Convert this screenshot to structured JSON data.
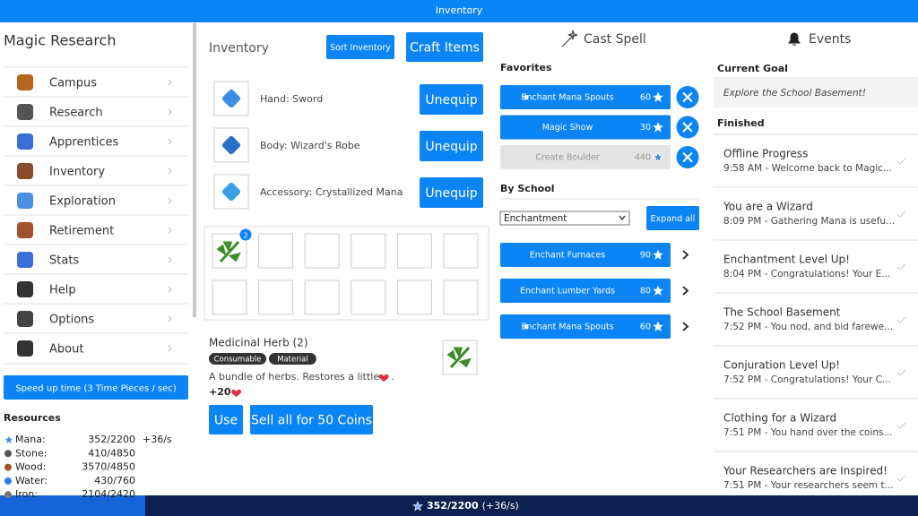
{
  "top_bar": {
    "title": "Inventory"
  },
  "sidebar": {
    "title": "Magic Research",
    "nav": [
      "Campus",
      "Research",
      "Apprentices",
      "Inventory",
      "Exploration",
      "Retirement",
      "Stats",
      "Help",
      "Options",
      "About"
    ],
    "speed_button": "Speed up time (3 Time Pieces / sec)",
    "resources": {
      "title": "Resources",
      "rows": [
        {
          "name": "Mana:",
          "amount": "352/2200",
          "rate": "+36/s"
        },
        {
          "name": "Stone:",
          "amount": "410/4850"
        },
        {
          "name": "Wood:",
          "amount": "3570/4850"
        },
        {
          "name": "Water:",
          "amount": "430/760"
        },
        {
          "name": "Iron:",
          "amount": "2104/2420"
        }
      ]
    }
  },
  "inventory": {
    "title": "Inventory",
    "sort_button": "Sort Inventory",
    "craft_button": "Craft Items",
    "equipment": [
      {
        "label": "Hand: Sword",
        "button": "Unequip"
      },
      {
        "label": "Body: Wizard's Robe",
        "button": "Unequip"
      },
      {
        "label": "Accessory: Crystallized Mana",
        "button": "Unequip"
      }
    ],
    "slot_badge": "2",
    "item": {
      "name": "Medicinal Herb (2)",
      "tags": [
        "Consumable",
        "Material"
      ],
      "description": [
        "A bundle of herbs. Restores a little",
        "."
      ],
      "effect": "+20",
      "use_button": "Use",
      "sell_button": "Sell all for 50 Coins"
    }
  },
  "cast_spell": {
    "title": "Cast Spell",
    "favorites_title": "Favorites",
    "favorites": [
      {
        "name": "Enchant Mana Spouts",
        "cost": "60"
      },
      {
        "name": "Magic Show",
        "cost": "30"
      },
      {
        "name": "Create Boulder",
        "cost": "440"
      }
    ],
    "by_school_title": "By School",
    "school_select": "Enchantment",
    "expand_button": "Expand all",
    "school_spells": [
      {
        "name": "Enchant Furnaces",
        "cost": "90"
      },
      {
        "name": "Enchant Lumber Yards",
        "cost": "80"
      },
      {
        "name": "Enchant Mana Spouts",
        "cost": "60"
      }
    ]
  },
  "events": {
    "title": "Events",
    "current_goal_title": "Current Goal",
    "current_goal": "Explore the School Basement!",
    "finished_title": "Finished",
    "list": [
      {
        "title": "Offline Progress",
        "text": "9:58 AM - Welcome back to Magic..."
      },
      {
        "title": "You are a Wizard",
        "text": "8:09 PM - Gathering Mana is usefu..."
      },
      {
        "title": "Enchantment Level Up!",
        "text": "8:04 PM - Congratulations! Your E..."
      },
      {
        "title": "The School Basement",
        "text": "7:52 PM - You nod, and bid farewe..."
      },
      {
        "title": "Conjuration Level Up!",
        "text": "7:52 PM - Congratulations! Your C..."
      },
      {
        "title": "Clothing for a Wizard",
        "text": "7:51 PM - You hand over the coins..."
      },
      {
        "title": "Your Researchers are Inspired!",
        "text": "7:51 PM - Your researchers seem t..."
      }
    ]
  },
  "bottom_bar": {
    "mana": "352/2200",
    "rate": "(+36/s)"
  }
}
